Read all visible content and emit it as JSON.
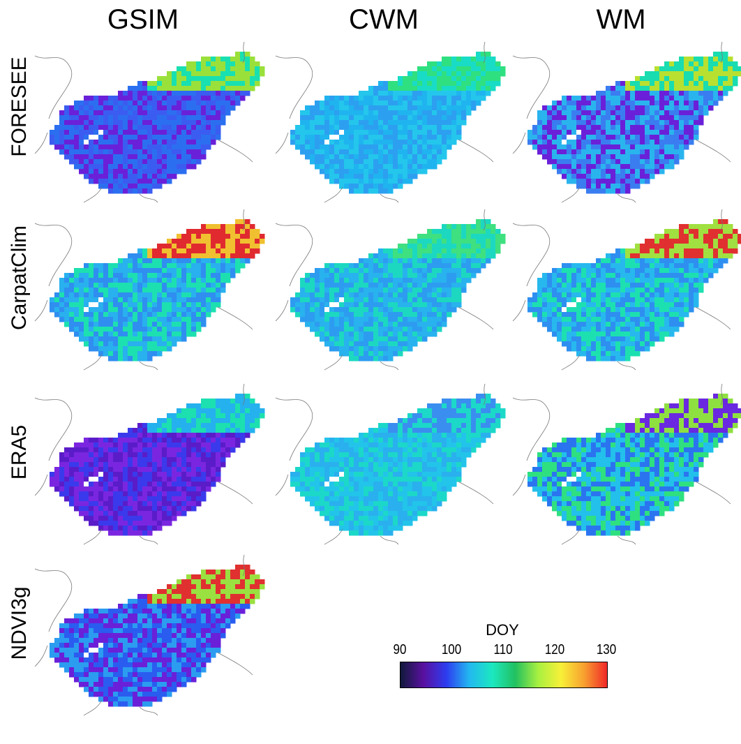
{
  "figure": {
    "columns": [
      "GSIM",
      "CWM",
      "WM"
    ],
    "rows": [
      "FORESEE",
      "CarpatClim",
      "ERA5",
      "NDVI3g"
    ]
  },
  "panels": [
    {
      "row": "FORESEE",
      "column": "GSIM",
      "palette": [
        "#2b6ff0",
        "#3b5cf0",
        "#6a20d8",
        "#22c4e8",
        "#19e0b0",
        "#9ae03a"
      ]
    },
    {
      "row": "FORESEE",
      "column": "CWM",
      "palette": [
        "#1fb4ef",
        "#24c6ec",
        "#2d9ff0",
        "#19dcc6",
        "#2fe080"
      ]
    },
    {
      "row": "FORESEE",
      "column": "WM",
      "palette": [
        "#3a7df0",
        "#2ab4ee",
        "#6a20d8",
        "#19dcb0",
        "#b8e030"
      ]
    },
    {
      "row": "CarpatClim",
      "column": "GSIM",
      "palette": [
        "#29b0ee",
        "#2f8ef0",
        "#1de0b0",
        "#7ee040",
        "#e02a30",
        "#f0c030"
      ]
    },
    {
      "row": "CarpatClim",
      "column": "CWM",
      "palette": [
        "#28b2ee",
        "#2d9cf0",
        "#1cd8c0",
        "#3fe080"
      ]
    },
    {
      "row": "CarpatClim",
      "column": "WM",
      "palette": [
        "#2e8ff0",
        "#27b8ee",
        "#1de0b0",
        "#a0e040",
        "#e03030"
      ]
    },
    {
      "row": "ERA5",
      "column": "GSIM",
      "palette": [
        "#5a1cc8",
        "#7a26e0",
        "#3a3aec",
        "#25b0ee",
        "#1ce0b0"
      ]
    },
    {
      "row": "ERA5",
      "column": "CWM",
      "palette": [
        "#2ab0ee",
        "#22c4ea",
        "#1cd8c8",
        "#3a8ef0"
      ]
    },
    {
      "row": "ERA5",
      "column": "WM",
      "palette": [
        "#2b74f0",
        "#22c0ea",
        "#2ee080",
        "#8ee040",
        "#6a28e0"
      ]
    },
    {
      "row": "NDVI3g",
      "column": "GSIM",
      "palette": [
        "#2a5cf0",
        "#2b9cf0",
        "#6a20d8",
        "#1ce0b0",
        "#9ae040",
        "#e03030"
      ]
    }
  ],
  "legend": {
    "title": "DOY",
    "ticks": [
      90,
      100,
      110,
      120,
      130
    ],
    "range": [
      90,
      130
    ],
    "colors": [
      "#101a3a",
      "#5a10a0",
      "#2d3cf0",
      "#22b8f0",
      "#1ce8c0",
      "#22c060",
      "#a8f040",
      "#f8f038",
      "#f8a030",
      "#f02828"
    ]
  }
}
